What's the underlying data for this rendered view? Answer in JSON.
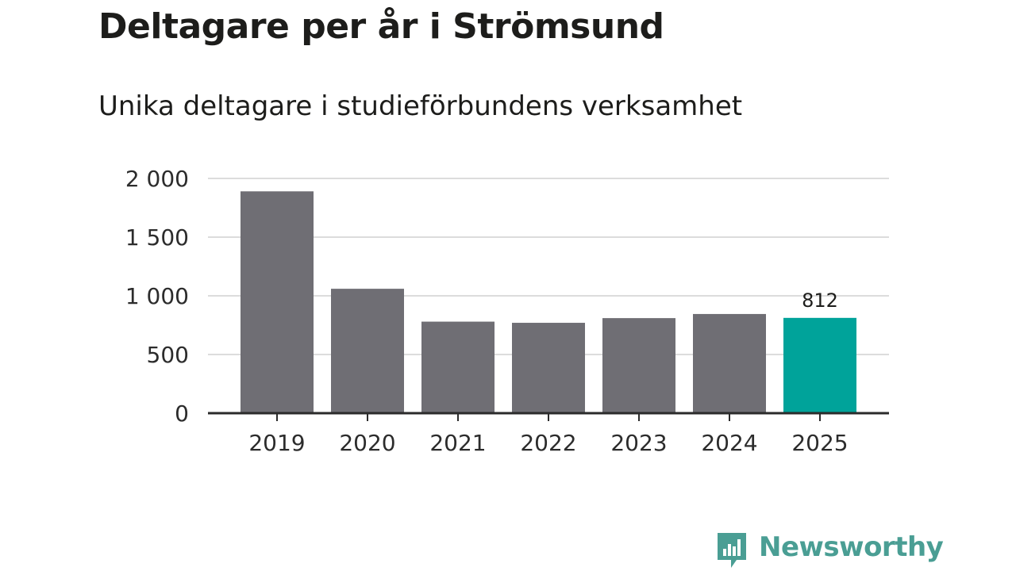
{
  "chart_data": {
    "type": "bar",
    "title": "Deltagare per år i Strömsund",
    "subtitle": "Unika deltagare i studieförbundens verksamhet",
    "categories": [
      "2019",
      "2020",
      "2021",
      "2022",
      "2023",
      "2024",
      "2025"
    ],
    "values": [
      1890,
      1060,
      780,
      770,
      810,
      845,
      812
    ],
    "highlight_index": 6,
    "data_labels": [
      {
        "category": "2025",
        "value": 812,
        "text": "812"
      }
    ],
    "ylim": [
      0,
      2000
    ],
    "yticks": [
      0,
      500,
      1000,
      1500,
      2000
    ],
    "ytick_labels": [
      "0",
      "500",
      "1 000",
      "1 500",
      "2 000"
    ],
    "xlabel": "",
    "ylabel": "",
    "grid": true,
    "legend": "none",
    "colors": {
      "bar": "#6f6e74",
      "highlight": "#00a39a",
      "grid": "#dcdcdc",
      "axis": "#2b2b2b"
    }
  },
  "brand": {
    "name": "Newsworthy",
    "color": "#4a9e94"
  }
}
